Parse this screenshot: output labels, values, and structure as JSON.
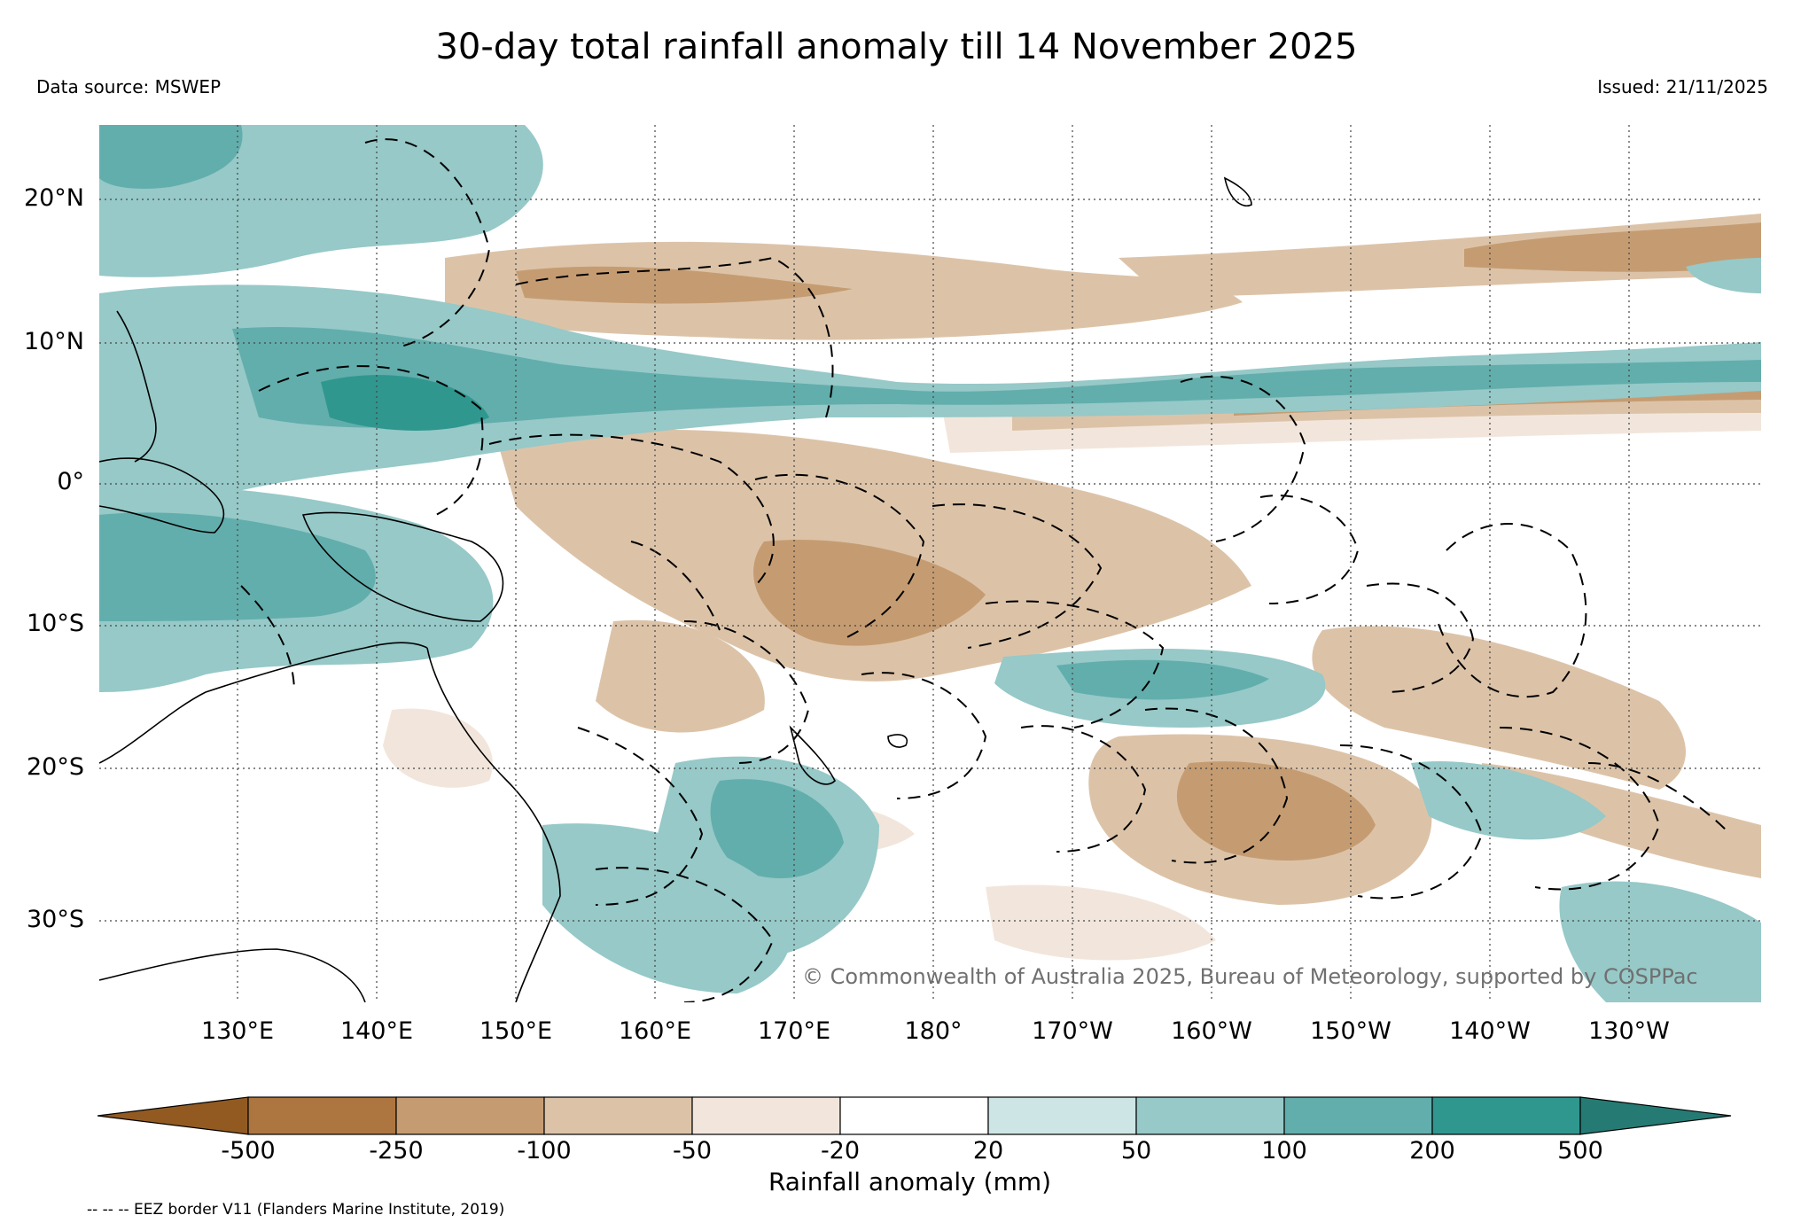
{
  "title": "30-day total rainfall anomaly till 14 November 2025",
  "data_source": "Data source: MSWEP",
  "issued": "Issued: 21/11/2025",
  "copyright": "© Commonwealth of Australia 2025, Bureau of Meteorology, supported by COSPPac",
  "lat_labels": [
    "20°N",
    "10°N",
    "0°",
    "10°S",
    "20°S",
    "30°S"
  ],
  "lon_labels": [
    "130°E",
    "140°E",
    "150°E",
    "160°E",
    "170°E",
    "180°",
    "170°W",
    "160°W",
    "150°W",
    "140°W",
    "130°W"
  ],
  "colorbar": {
    "label": "Rainfall anomaly (mm)",
    "ticks": [
      "-500",
      "-250",
      "-100",
      "-50",
      "-20",
      "20",
      "50",
      "100",
      "200",
      "500"
    ],
    "colors": [
      "#925a21",
      "#ad7640",
      "#c59c72",
      "#dcc3a8",
      "#f2e6dc",
      "#ffffff",
      "#cde5e4",
      "#96c9c8",
      "#62aeac",
      "#30978f",
      "#257a74"
    ]
  },
  "eez_note": "-- -- -- EEZ border V11 (Flanders Marine Institute, 2019)"
}
